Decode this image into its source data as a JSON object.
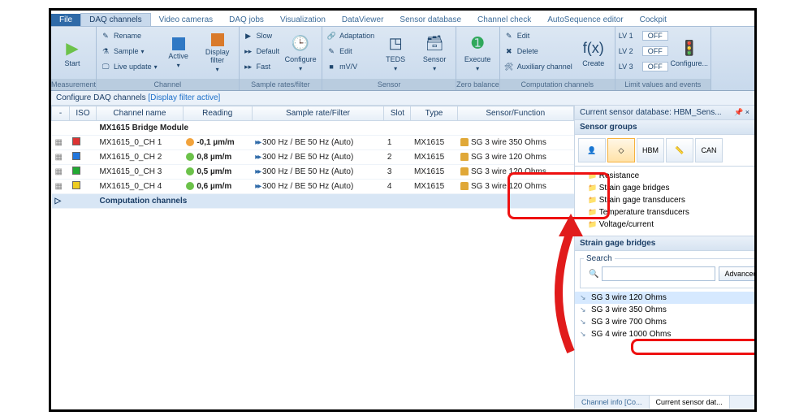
{
  "tabs": {
    "file": "File",
    "items": [
      "DAQ channels",
      "Video cameras",
      "DAQ jobs",
      "Visualization",
      "DataViewer",
      "Sensor database",
      "Channel check",
      "AutoSequence editor",
      "Cockpit"
    ],
    "active_index": 0
  },
  "ribbon": {
    "groups": [
      {
        "label": "Measurement",
        "start": {
          "label": "Start",
          "icon": "play",
          "icon_color": "#6cc24a"
        }
      },
      {
        "label": "Channel",
        "rows": [
          {
            "icon": "pencil",
            "text": "Rename"
          },
          {
            "icon": "flask",
            "text": "Sample",
            "dropdown": true
          },
          {
            "icon": "screen",
            "text": "Live update",
            "dropdown": true
          }
        ],
        "bigbtns": [
          {
            "label": "Active",
            "square_color": "#2f78c4",
            "dropdown": true
          },
          {
            "label": "Display filter",
            "square_color": "#d97a2b",
            "dropdown": true
          }
        ]
      },
      {
        "label": "Sample rates/filter",
        "rows": [
          {
            "icon": "play-sm",
            "text": "Slow"
          },
          {
            "icon": "ffwd-blue",
            "text": "Default"
          },
          {
            "icon": "ffwd-blue",
            "text": "Fast"
          }
        ],
        "bigbtns": [
          {
            "label": "Configure",
            "icon": "clock",
            "icon_color": "#d9a23b",
            "dropdown": true
          }
        ]
      },
      {
        "label": "Sensor",
        "bigbtns": [
          {
            "label": "TEDS",
            "icon": "teds",
            "dropdown": true
          },
          {
            "label": "Sensor",
            "icon": "sensor",
            "dropdown": true
          }
        ],
        "rows": [
          {
            "icon": "link",
            "text": "Adaptation"
          },
          {
            "icon": "pencil",
            "text": "Edit"
          },
          {
            "icon": "mvv",
            "text": "mV/V"
          }
        ]
      },
      {
        "label": "Zero balance",
        "bigbtns": [
          {
            "label": "Execute",
            "icon": "zero",
            "icon_color": "#2fa85a",
            "dropdown": true
          }
        ]
      },
      {
        "label": "Computation channels",
        "bigbtns": [
          {
            "label": "Create",
            "icon": "fx"
          }
        ],
        "rows": [
          {
            "icon": "pencil",
            "text": "Edit"
          },
          {
            "icon": "delete",
            "text": "Delete"
          },
          {
            "icon": "aux",
            "text": "Auxiliary channel"
          }
        ]
      },
      {
        "label": "Limit values and events",
        "bigbtns": [
          {
            "label": "Configure...",
            "icon": "traffic"
          }
        ],
        "rows": [
          {
            "text_left": "LV 1",
            "text_right": "OFF"
          },
          {
            "text_left": "LV 2",
            "text_right": "OFF"
          },
          {
            "text_left": "LV 3",
            "text_right": "OFF"
          }
        ]
      }
    ]
  },
  "subheader": {
    "prefix": "Configure DAQ channels ",
    "suffix": "[Display filter active]"
  },
  "grid": {
    "columns": [
      "-",
      "ISO",
      "Channel name",
      "Reading",
      "Sample rate/Filter",
      "Slot",
      "Type",
      "Sensor/Function"
    ],
    "module_row": "MX1615 Bridge Module",
    "rows": [
      {
        "iso_color": "iso-red",
        "name": "MX1615_0_CH 1",
        "reading_dot": "o",
        "reading": "-0,1 µm/m",
        "rate": "300 Hz / BE 50 Hz (Auto)",
        "slot": "1",
        "type": "MX1615",
        "sensor": "SG 3 wire 350 Ohms"
      },
      {
        "iso_color": "iso-blue",
        "name": "MX1615_0_CH 2",
        "reading_dot": "g",
        "reading": "0,8 µm/m",
        "rate": "300 Hz / BE 50 Hz (Auto)",
        "slot": "2",
        "type": "MX1615",
        "sensor": "SG 3 wire 120 Ohms"
      },
      {
        "iso_color": "iso-green",
        "name": "MX1615_0_CH 3",
        "reading_dot": "g",
        "reading": "0,5 µm/m",
        "rate": "300 Hz / BE 50 Hz (Auto)",
        "slot": "3",
        "type": "MX1615",
        "sensor": "SG 3 wire 120 Ohms"
      },
      {
        "iso_color": "iso-yellow",
        "name": "MX1615_0_CH 4",
        "reading_dot": "g",
        "reading": "0,6 µm/m",
        "rate": "300 Hz / BE 50 Hz (Auto)",
        "slot": "4",
        "type": "MX1615",
        "sensor": "SG 3 wire 120 Ohms"
      }
    ],
    "comp_row": "Computation channels"
  },
  "rightpanel": {
    "db_title": "Current sensor database: HBM_Sens...",
    "groups_title": "Sensor groups",
    "iconbar_labels": [
      "👤",
      "◇",
      "HBM",
      "📏",
      "CAN"
    ],
    "tree": [
      "Resistance",
      "Strain gage bridges",
      "Strain gage transducers",
      "Temperature transducers",
      "Voltage/current"
    ],
    "list_title": "Strain gage bridges",
    "search_legend": "Search",
    "advanced_btn": "Advanced...",
    "sensors": [
      "SG 3 wire 120 Ohms",
      "SG 3 wire 350 Ohms",
      "SG 3 wire 700 Ohms",
      "SG 4 wire 1000 Ohms"
    ],
    "sensors_selected_index": 0,
    "bottom_tabs": [
      "Channel info [Co...",
      "Current sensor dat..."
    ],
    "bottom_active": 1
  },
  "styling": {
    "highlight_color": "#e11b1b",
    "ribbon_bg_top": "#dce7f3",
    "ribbon_bg_bottom": "#c8d9ec",
    "accent_blue": "#2f6aa8"
  }
}
